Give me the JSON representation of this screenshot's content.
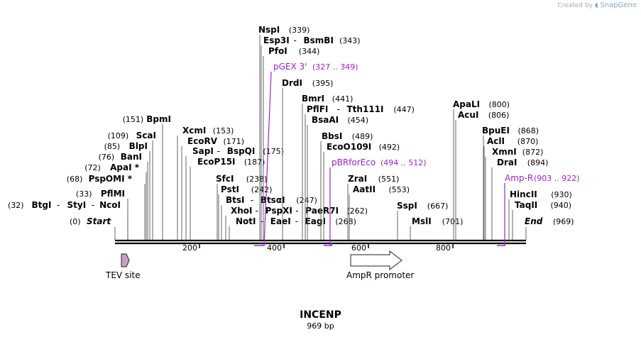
{
  "credit": {
    "prefix": "Created by",
    "brand": "SnapGene"
  },
  "map": {
    "title": "INCENP",
    "length_label": "969 bp",
    "length": 969,
    "sequence_range_label": {
      "start": "Start",
      "start_pos": "(0)",
      "end": "End",
      "end_pos": "(969)"
    },
    "ticks": [
      "200",
      "400",
      "600",
      "800"
    ],
    "colors": {
      "primer": "#a020c8",
      "feature_tev": "#c8a0c0",
      "line": "#000000"
    }
  },
  "sites": [
    {
      "left": true,
      "parts": [
        "BtgI",
        "StyI",
        "NcoI"
      ],
      "pos": "(32)"
    },
    {
      "left": true,
      "parts": [
        "PflMI"
      ],
      "pos": "(33)"
    },
    {
      "left": true,
      "parts": [
        "PspOMI *"
      ],
      "pos": "(68)"
    },
    {
      "left": true,
      "parts": [
        "ApaI *"
      ],
      "pos": "(72)"
    },
    {
      "left": true,
      "parts": [
        "BanI"
      ],
      "pos": "(76)"
    },
    {
      "left": true,
      "parts": [
        "BlpI"
      ],
      "pos": "(85)"
    },
    {
      "left": true,
      "parts": [
        "ScaI"
      ],
      "pos": "(109)"
    },
    {
      "left": true,
      "parts": [
        "BpmI"
      ],
      "pos": "(151)"
    },
    {
      "left": false,
      "parts": [
        "XcmI"
      ],
      "pos": "(153)"
    },
    {
      "left": false,
      "parts": [
        "EcoRV"
      ],
      "pos": "(171)"
    },
    {
      "left": false,
      "parts": [
        "SapI",
        "BspQI"
      ],
      "pos": "(175)"
    },
    {
      "left": false,
      "parts": [
        "EcoP15I"
      ],
      "pos": "(187)"
    },
    {
      "left": false,
      "parts": [
        "SfcI"
      ],
      "pos": "(238)"
    },
    {
      "left": false,
      "parts": [
        "PstI"
      ],
      "pos": "(242)"
    },
    {
      "left": false,
      "parts": [
        "BtsI",
        "BtsαI"
      ],
      "pos": "(247)"
    },
    {
      "left": false,
      "parts": [
        "XhoI",
        "PspXI",
        "PaeR7I"
      ],
      "pos": "(262)"
    },
    {
      "left": false,
      "parts": [
        "NotI",
        "EaeI",
        "EagI"
      ],
      "pos": "(268)"
    },
    {
      "left": false,
      "parts": [
        "NspI"
      ],
      "pos": "(339)"
    },
    {
      "left": false,
      "parts": [
        "Esp3I",
        "BsmBI"
      ],
      "pos": "(343)"
    },
    {
      "left": false,
      "parts": [
        "PfoI"
      ],
      "pos": "(344)"
    },
    {
      "left": false,
      "parts": [
        "DrdI"
      ],
      "pos": "(395)"
    },
    {
      "left": false,
      "parts": [
        "BmrI"
      ],
      "pos": "(441)"
    },
    {
      "left": false,
      "parts": [
        "PflFI",
        "Tth111I"
      ],
      "pos": "(447)"
    },
    {
      "left": false,
      "parts": [
        "BsaAI"
      ],
      "pos": "(454)"
    },
    {
      "left": false,
      "parts": [
        "BbsI"
      ],
      "pos": "(489)"
    },
    {
      "left": false,
      "parts": [
        "EcoO109I"
      ],
      "pos": "(492)"
    },
    {
      "left": false,
      "parts": [
        "ZraI"
      ],
      "pos": "(551)"
    },
    {
      "left": false,
      "parts": [
        "AatII"
      ],
      "pos": "(553)"
    },
    {
      "left": false,
      "parts": [
        "SspI"
      ],
      "pos": "(667)"
    },
    {
      "left": false,
      "parts": [
        "MslI"
      ],
      "pos": "(701)"
    },
    {
      "left": false,
      "parts": [
        "ApaLI"
      ],
      "pos": "(800)"
    },
    {
      "left": false,
      "parts": [
        "AcuI"
      ],
      "pos": "(806)"
    },
    {
      "left": false,
      "parts": [
        "BpuEI"
      ],
      "pos": "(868)"
    },
    {
      "left": false,
      "parts": [
        "AclI"
      ],
      "pos": "(870)"
    },
    {
      "left": false,
      "parts": [
        "XmnI"
      ],
      "pos": "(872)"
    },
    {
      "left": false,
      "parts": [
        "DraI"
      ],
      "pos": "(894)"
    },
    {
      "left": false,
      "parts": [
        "HincII"
      ],
      "pos": "(930)"
    },
    {
      "left": false,
      "parts": [
        "TaqII"
      ],
      "pos": "(940)"
    }
  ],
  "primers": [
    {
      "name": "pGEX 3'",
      "range": "(327 .. 349)"
    },
    {
      "name": "pBRforEco",
      "range": "(494 .. 512)"
    },
    {
      "name": "Amp-R",
      "range": "(903 .. 922)"
    }
  ],
  "features": [
    {
      "name": "TEV site",
      "type": "arrow-small"
    },
    {
      "name": "AmpR promoter",
      "type": "arrow-large"
    }
  ]
}
